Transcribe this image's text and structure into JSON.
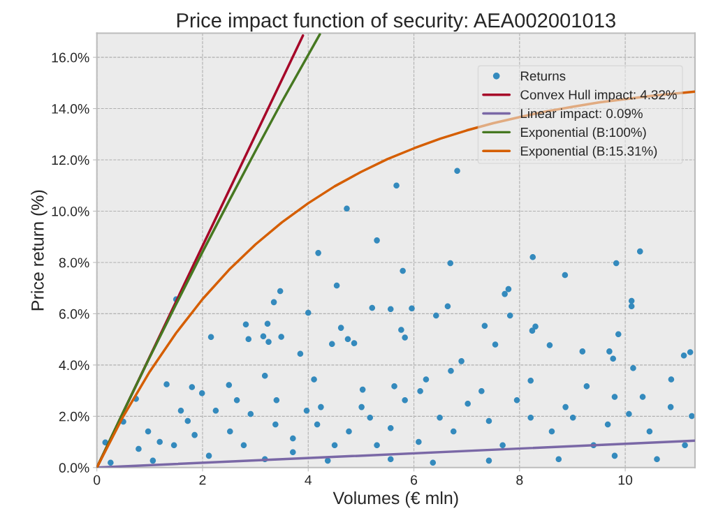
{
  "chart_data": {
    "type": "scatter",
    "title": "Price impact function of security: AEA002001013",
    "xlabel": "Volumes (€ mln)",
    "ylabel": "Price return (%)",
    "xlim": [
      0,
      11.32
    ],
    "ylim": [
      0,
      16.94
    ],
    "xticks": [
      0,
      2,
      4,
      6,
      8,
      10
    ],
    "yticks": [
      {
        "value": 0,
        "label": "0.0%"
      },
      {
        "value": 2,
        "label": "2.0%"
      },
      {
        "value": 4,
        "label": "4.0%"
      },
      {
        "value": 6,
        "label": "6.0%"
      },
      {
        "value": 8,
        "label": "8.0%"
      },
      {
        "value": 10,
        "label": "10.0%"
      },
      {
        "value": 12,
        "label": "12.0%"
      },
      {
        "value": 14,
        "label": "14.0%"
      },
      {
        "value": 16,
        "label": "16.0%"
      }
    ],
    "grid": true,
    "legend": "top right",
    "series": [
      {
        "name": "Returns",
        "marker": "circle",
        "color": "#348abd",
        "x": [
          5.67,
          4.73,
          6.82,
          5.3,
          4.19,
          6.69,
          5.79,
          10.28,
          9.83,
          8.25,
          8.86,
          4.54,
          3.47,
          3.35,
          5.56,
          5.96,
          5.21,
          10.12,
          10.12,
          7.79,
          7.72,
          4.0,
          2.16,
          2.87,
          3.23,
          3.25,
          3.49,
          3.15,
          2.82,
          3.85,
          4.62,
          4.45,
          4.75,
          4.87,
          5.83,
          5.76,
          6.42,
          7.34,
          6.64,
          7.82,
          8.24,
          8.3,
          8.57,
          9.7,
          9.87,
          9.77,
          10.15,
          10.87,
          11.23,
          11.11,
          9.19,
          7.54,
          6.9,
          6.23,
          6.7,
          6.12,
          7.28,
          8.21,
          9.27,
          5.83,
          5.01,
          5.17,
          4.24,
          3.4,
          2.5,
          1.8,
          1.32,
          0.74,
          0.5,
          0.16,
          0.97,
          1.72,
          2.25,
          2.52,
          2.91,
          3.38,
          3.71,
          4.17,
          4.5,
          4.77,
          5.3,
          5.56,
          6.09,
          6.49,
          6.75,
          7.42,
          7.68,
          8.21,
          8.61,
          9.01,
          9.4,
          9.67,
          10.07,
          10.46,
          10.86,
          11.26,
          11.13,
          10.6,
          9.8,
          8.74,
          7.42,
          6.36,
          5.56,
          4.37,
          3.18,
          2.12,
          1.06,
          0.26,
          1.5,
          1.46,
          1.85,
          2.78,
          3.71,
          3.97,
          2.65,
          1.99,
          1.59,
          1.19,
          0.79,
          3.18,
          4.11,
          5.03,
          5.63,
          7.02,
          7.95,
          8.87,
          9.8,
          10.33
        ],
        "values": [
          11.0,
          10.1,
          11.57,
          8.86,
          8.37,
          7.97,
          7.67,
          8.43,
          7.97,
          8.21,
          7.51,
          7.1,
          6.88,
          6.45,
          6.18,
          6.21,
          6.23,
          6.5,
          6.29,
          6.96,
          6.77,
          6.04,
          5.09,
          5.01,
          5.61,
          4.9,
          5.1,
          5.12,
          5.58,
          4.44,
          5.45,
          4.82,
          5.01,
          4.85,
          5.07,
          5.37,
          5.93,
          5.53,
          6.29,
          5.93,
          5.34,
          5.5,
          4.77,
          4.53,
          5.2,
          4.25,
          3.88,
          3.44,
          4.5,
          4.37,
          4.53,
          4.8,
          4.15,
          3.44,
          3.77,
          2.98,
          2.98,
          3.39,
          3.17,
          2.63,
          2.36,
          1.95,
          2.36,
          2.63,
          3.22,
          3.14,
          3.25,
          2.68,
          1.79,
          0.98,
          1.41,
          1.82,
          2.22,
          1.41,
          2.09,
          1.68,
          1.14,
          1.68,
          0.87,
          1.41,
          0.87,
          1.54,
          1.0,
          1.95,
          1.41,
          1.82,
          0.87,
          1.95,
          1.41,
          1.95,
          0.87,
          1.68,
          2.09,
          1.41,
          2.36,
          2.01,
          0.87,
          0.33,
          0.46,
          0.33,
          0.27,
          0.19,
          0.33,
          0.27,
          0.33,
          0.46,
          0.27,
          0.19,
          6.56,
          0.87,
          1.27,
          0.87,
          0.6,
          2.22,
          2.63,
          2.9,
          2.22,
          1.0,
          0.73,
          3.58,
          3.44,
          3.04,
          3.17,
          2.49,
          2.63,
          2.36,
          2.76,
          2.76
        ]
      },
      {
        "name": "Convex Hull impact: 4.32%",
        "type": "line",
        "color": "#a60628",
        "x": [
          0,
          3.9
        ],
        "values": [
          0,
          16.85
        ]
      },
      {
        "name": "Linear impact: 0.09%",
        "type": "line",
        "color": "#7a68a6",
        "x": [
          0,
          11.32
        ],
        "values": [
          0,
          1.05
        ]
      },
      {
        "name": "Exponential (B:100%)",
        "type": "line",
        "color": "#467821",
        "x": [
          0,
          0.5,
          1,
          1.5,
          2,
          2.5,
          3,
          3.5,
          4.22
        ],
        "values": [
          0,
          2.17,
          4.3,
          6.37,
          8.41,
          10.39,
          12.34,
          14.26,
          16.9
        ]
      },
      {
        "name": "Exponential (B:15.31%)",
        "type": "line",
        "color": "#d55e00",
        "x": [
          0,
          0.5,
          1,
          1.5,
          2,
          2.5,
          3,
          3.5,
          4,
          4.5,
          5,
          5.5,
          6,
          6.5,
          7,
          7.5,
          8,
          8.5,
          9,
          9.5,
          10,
          10.5,
          11.32
        ],
        "values": [
          0,
          2.0,
          3.74,
          5.25,
          6.57,
          7.71,
          8.7,
          9.56,
          10.31,
          10.97,
          11.53,
          12.03,
          12.45,
          12.83,
          13.15,
          13.43,
          13.67,
          13.89,
          14.07,
          14.24,
          14.37,
          14.5,
          14.66
        ]
      }
    ]
  }
}
